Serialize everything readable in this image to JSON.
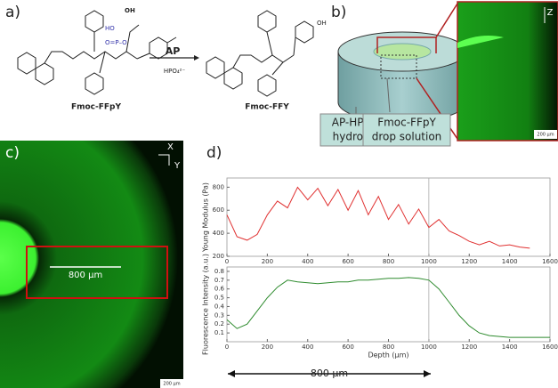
{
  "panels": {
    "a": {
      "label": "a)",
      "reactant": "Fmoc-FFpY",
      "product": "Fmoc-FFY",
      "enzyme": "AP",
      "byproduct": "HPO₄²⁻"
    },
    "b": {
      "label": "b)",
      "hydrogel": [
        "AP-HPMC",
        "hydrogel"
      ],
      "drop": [
        "Fmoc-FFpY",
        "drop solution"
      ],
      "axis": "Z",
      "scale_bar": "200 μm"
    },
    "c": {
      "label": "c)",
      "axis_x": "X",
      "axis_y": "Y",
      "span": "800 μm",
      "scale_bar": "200 μm"
    },
    "d": {
      "label": "d)",
      "span": "800 μm"
    }
  },
  "chart_data": [
    {
      "type": "line",
      "ylabel": "Young Modulus (Pa)",
      "color": "#e03030",
      "x": [
        0,
        50,
        100,
        150,
        200,
        250,
        300,
        350,
        400,
        450,
        500,
        550,
        600,
        650,
        700,
        750,
        800,
        850,
        900,
        950,
        1000,
        1050,
        1100,
        1150,
        1200,
        1250,
        1300,
        1350,
        1400,
        1450,
        1500
      ],
      "values": [
        560,
        370,
        340,
        390,
        560,
        680,
        620,
        800,
        690,
        790,
        640,
        780,
        600,
        770,
        560,
        720,
        520,
        650,
        480,
        610,
        450,
        520,
        420,
        380,
        330,
        300,
        330,
        290,
        300,
        280,
        270
      ],
      "xlim": [
        0,
        1600
      ],
      "xticks": [
        0,
        200,
        400,
        600,
        800,
        1000,
        1200,
        1400,
        1600
      ],
      "ylim": [
        200,
        880
      ],
      "yticks": [
        200,
        400,
        600,
        800
      ],
      "vline": 1000
    },
    {
      "type": "line",
      "ylabel": "Fluorescence Intensity (a.u.)",
      "xlabel": "Depth (μm)",
      "color": "#2e8b2e",
      "x": [
        0,
        50,
        100,
        150,
        200,
        250,
        300,
        350,
        400,
        450,
        500,
        550,
        600,
        650,
        700,
        750,
        800,
        850,
        900,
        950,
        1000,
        1050,
        1100,
        1150,
        1200,
        1250,
        1300,
        1350,
        1400,
        1450,
        1500,
        1550,
        1600
      ],
      "values": [
        0.25,
        0.15,
        0.2,
        0.35,
        0.5,
        0.62,
        0.7,
        0.68,
        0.67,
        0.66,
        0.67,
        0.68,
        0.68,
        0.7,
        0.7,
        0.71,
        0.72,
        0.72,
        0.73,
        0.72,
        0.7,
        0.6,
        0.45,
        0.3,
        0.18,
        0.1,
        0.07,
        0.06,
        0.05,
        0.05,
        0.05,
        0.05,
        0.05
      ],
      "xlim": [
        0,
        1600
      ],
      "xticks": [
        0,
        200,
        400,
        600,
        800,
        1000,
        1200,
        1400,
        1600
      ],
      "ylim": [
        0,
        0.85
      ],
      "yticks": [
        0.1,
        0.2,
        0.3,
        0.4,
        0.5,
        0.6,
        0.7,
        0.8
      ],
      "vline": 1000
    }
  ]
}
